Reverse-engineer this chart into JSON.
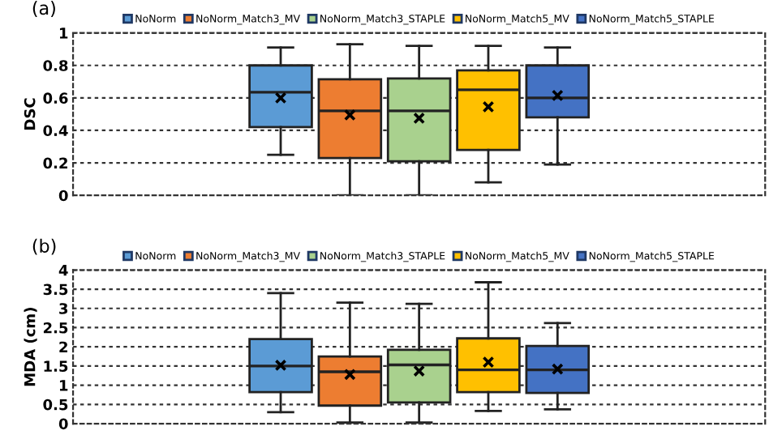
{
  "chart_data": [
    {
      "type": "box",
      "annotations": [
        "(a)"
      ],
      "ylabel": "DSC",
      "categories": [
        null
      ],
      "ylim": [
        0,
        1
      ],
      "yticks": [
        0,
        0.2,
        0.4,
        0.6,
        0.8,
        1
      ],
      "grid": "y",
      "legend": "top",
      "tick_labels": "y",
      "marker": "cross",
      "series": [
        {
          "name": "NoNorm",
          "color": "#5b9bd5",
          "boxes": [
            {
              "low": 0.25,
              "q1": 0.42,
              "median": 0.635,
              "q3": 0.8,
              "high": 0.91,
              "mean": 0.6
            }
          ]
        },
        {
          "name": "NoNorm_Match3_MV",
          "color": "#ed7d31",
          "boxes": [
            {
              "low": 0,
              "q1": 0.23,
              "median": 0.52,
              "q3": 0.715,
              "high": 0.93,
              "mean": 0.495
            }
          ]
        },
        {
          "name": "NoNorm_Match3_STAPLE",
          "color": "#a9d18e",
          "boxes": [
            {
              "low": 0,
              "q1": 0.21,
              "median": 0.52,
              "q3": 0.72,
              "high": 0.92,
              "mean": 0.475
            }
          ]
        },
        {
          "name": "NoNorm_Match5_MV",
          "color": "#ffc000",
          "boxes": [
            {
              "low": 0.08,
              "q1": 0.28,
              "median": 0.65,
              "q3": 0.77,
              "high": 0.92,
              "mean": 0.545
            }
          ]
        },
        {
          "name": "NoNorm_Match5_STAPLE",
          "color": "#4472c4",
          "boxes": [
            {
              "low": 0.19,
              "q1": 0.48,
              "median": 0.6,
              "q3": 0.8,
              "high": 0.91,
              "mean": 0.615
            }
          ]
        }
      ]
    },
    {
      "type": "box",
      "annotations": [
        "(b)"
      ],
      "ylabel": "MDA (cm)",
      "categories": [
        null
      ],
      "ylim": [
        0,
        4
      ],
      "yticks": [
        0,
        0.5,
        1,
        1.5,
        2,
        2.5,
        3,
        3.5,
        4
      ],
      "grid": "y",
      "legend": "top",
      "tick_labels": "y",
      "marker": "cross",
      "series": [
        {
          "name": "NoNorm",
          "color": "#5b9bd5",
          "boxes": [
            {
              "low": 0.3,
              "q1": 0.82,
              "median": 1.5,
              "q3": 2.2,
              "high": 3.4,
              "mean": 1.52
            }
          ]
        },
        {
          "name": "NoNorm_Match3_MV",
          "color": "#ed7d31",
          "boxes": [
            {
              "low": 0.03,
              "q1": 0.47,
              "median": 1.35,
              "q3": 1.75,
              "high": 3.15,
              "mean": 1.28
            }
          ]
        },
        {
          "name": "NoNorm_Match3_STAPLE",
          "color": "#a9d18e",
          "boxes": [
            {
              "low": 0.03,
              "q1": 0.55,
              "median": 1.53,
              "q3": 1.92,
              "high": 3.12,
              "mean": 1.37
            }
          ]
        },
        {
          "name": "NoNorm_Match5_MV",
          "color": "#ffc000",
          "boxes": [
            {
              "low": 0.33,
              "q1": 0.82,
              "median": 1.4,
              "q3": 2.22,
              "high": 3.68,
              "mean": 1.6
            }
          ]
        },
        {
          "name": "NoNorm_Match5_STAPLE",
          "color": "#4472c4",
          "boxes": [
            {
              "low": 0.37,
              "q1": 0.8,
              "median": 1.4,
              "q3": 2.02,
              "high": 2.62,
              "mean": 1.42
            }
          ]
        }
      ]
    }
  ]
}
